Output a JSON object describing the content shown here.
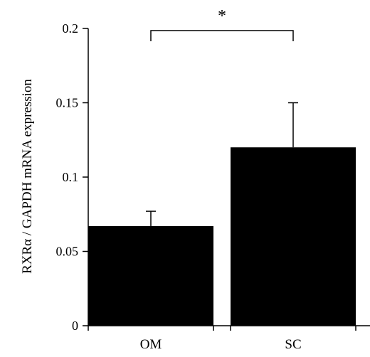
{
  "chart_data": {
    "type": "bar",
    "title": "",
    "xlabel": "",
    "ylabel": "RXRα / GAPDH mRNA expression",
    "categories": [
      "OM",
      "SC"
    ],
    "values": [
      0.067,
      0.12
    ],
    "error_upper": [
      0.01,
      0.03
    ],
    "ylim": [
      0,
      0.2
    ],
    "yticks": [
      0,
      0.05,
      0.1,
      0.15,
      0.2
    ],
    "ytick_labels": [
      "0",
      "0.05",
      "0.1",
      "0.15",
      "0.2"
    ],
    "grid": false,
    "bar_color": "#000000",
    "significance": {
      "between": [
        "OM",
        "SC"
      ],
      "label": "*"
    }
  }
}
